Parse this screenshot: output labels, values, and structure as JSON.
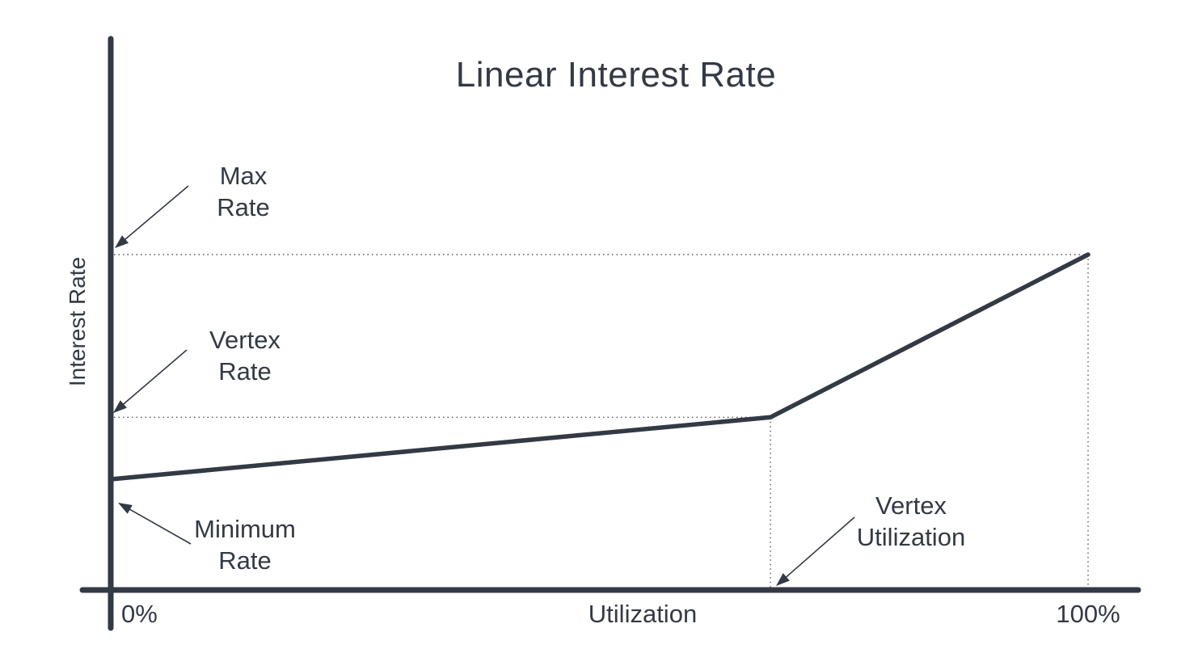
{
  "colors": {
    "ink": "#333a46",
    "dotted": "#54575e",
    "background": "#ffffff"
  },
  "title": "Linear Interest Rate",
  "axes": {
    "y_label": "Interest Rate",
    "x_label": "Utilization",
    "x_tick_min": "0%",
    "x_tick_max": "100%"
  },
  "annotations": {
    "max_rate": {
      "line1": "Max",
      "line2": "Rate"
    },
    "vertex_rate": {
      "line1": "Vertex",
      "line2": "Rate"
    },
    "minimum_rate": {
      "line1": "Minimum",
      "line2": "Rate"
    },
    "vertex_utilization": {
      "line1": "Vertex",
      "line2": "Utilization"
    }
  },
  "chart_data": {
    "type": "line",
    "title": "Linear Interest Rate",
    "xlabel": "Utilization",
    "ylabel": "Interest Rate",
    "x_tick_labels": [
      "0%",
      "100%"
    ],
    "x_range": [
      0,
      1
    ],
    "y_range": [
      0,
      1.1
    ],
    "grid": false,
    "legend": false,
    "series": [
      {
        "name": "linear interest rate curve",
        "x_utilization": [
          0,
          0.675,
          1.0
        ],
        "y_rate_relative": [
          0.33,
          0.515,
          1.0
        ],
        "point_labels": [
          "Minimum Rate at 0% utilization",
          "Vertex Rate at Vertex Utilization",
          "Max Rate at 100% utilization"
        ]
      }
    ],
    "key_values": {
      "minimum_rate_relative": 0.33,
      "vertex_rate_relative": 0.515,
      "max_rate_relative": 1.0,
      "vertex_utilization": 0.675
    },
    "annotations": [
      "Max Rate",
      "Vertex Rate",
      "Minimum Rate",
      "Vertex Utilization"
    ],
    "notes": "Y axis has no numeric tick labels; rate values are relative to Max Rate = 1.0. Dotted guide lines mark Max Rate, Vertex Rate, Vertex Utilization and 100% utilization."
  }
}
